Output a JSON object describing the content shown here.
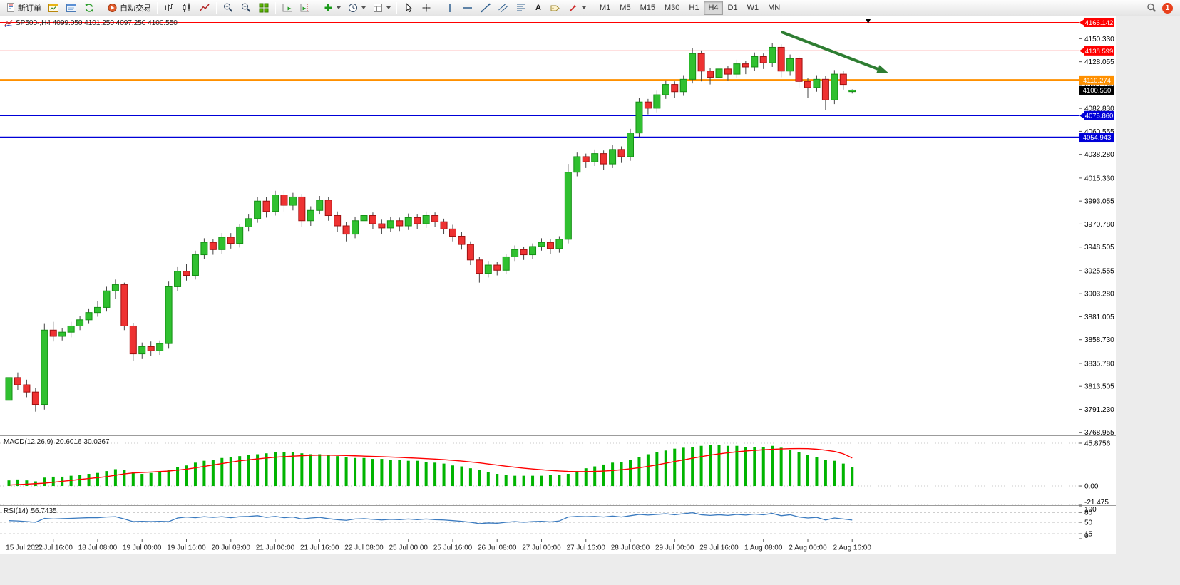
{
  "toolbar": {
    "new_order": "新订单",
    "autotrading": "自动交易",
    "text_tool": "A",
    "timeframes": [
      "M1",
      "M5",
      "M15",
      "M30",
      "H1",
      "H4",
      "D1",
      "W1",
      "MN"
    ],
    "active_timeframe": "H4",
    "notification_count": "1"
  },
  "chart_data": {
    "type": "candlestick",
    "symbol": "SP500-",
    "period": "H4",
    "title": "SP500-,H4 4099.050 4101.250 4097.250 4100.550",
    "ohlc": {
      "open": "4099.050",
      "high": "4101.250",
      "low": "4097.250",
      "close": "4100.550"
    },
    "price_range": [
      3766,
      4172
    ],
    "price_axis_ticks": [
      4150.33,
      4128.055,
      4105.78,
      4082.83,
      4060.555,
      4038.28,
      4015.33,
      3993.055,
      3970.78,
      3948.505,
      3925.555,
      3903.28,
      3881.005,
      3858.73,
      3835.78,
      3813.505,
      3791.23,
      3768.955
    ],
    "x_labels": [
      "15 Jul 2022",
      "15 Jul 16:00",
      "18 Jul 08:00",
      "19 Jul 00:00",
      "19 Jul 16:00",
      "20 Jul 08:00",
      "21 Jul 00:00",
      "21 Jul 16:00",
      "22 Jul 08:00",
      "25 Jul 00:00",
      "25 Jul 16:00",
      "26 Jul 08:00",
      "27 Jul 00:00",
      "27 Jul 16:00",
      "28 Jul 08:00",
      "29 Jul 00:00",
      "29 Jul 16:00",
      "1 Aug 08:00",
      "2 Aug 00:00",
      "2 Aug 16:00"
    ],
    "bars_per_label": 5,
    "colors": {
      "up": "#30C030",
      "up_border": "#149014",
      "down": "#EE3232",
      "down_border": "#A01010",
      "wick": "#444444"
    },
    "h_lines": [
      {
        "price": 4166.142,
        "color": "#FE0000",
        "label": "4166.142",
        "marker": true,
        "width": 1
      },
      {
        "price": 4138.599,
        "color": "#FE0000",
        "label": "4138.599",
        "marker": true,
        "width": 1
      },
      {
        "price": 4110.274,
        "color": "#FF9000",
        "label": "4110.274",
        "marker": false,
        "width": 2.5
      },
      {
        "price": 4100.55,
        "color": "#000000",
        "label": "4100.550",
        "marker": false,
        "width": 1
      },
      {
        "price": 4075.86,
        "color": "#0000D8",
        "label": "4075.860",
        "marker": true,
        "width": 1.5
      },
      {
        "price": 4054.943,
        "color": "#0000D8",
        "label": "4054.943",
        "marker": false,
        "width": 1.5
      }
    ],
    "annotations": [
      {
        "type": "arrow",
        "from_bar": 87,
        "from_price": 4157,
        "to_bar": 98.5,
        "to_price": 4119,
        "color": "#2E7D32",
        "width": 4
      }
    ],
    "shift_marker_bar": 96.8,
    "candles": [
      [
        3800,
        3826,
        3795,
        3822
      ],
      [
        3822,
        3827,
        3810,
        3815
      ],
      [
        3815,
        3820,
        3803,
        3808
      ],
      [
        3808,
        3812,
        3789,
        3796
      ],
      [
        3796,
        3874,
        3791,
        3868
      ],
      [
        3868,
        3876,
        3857,
        3862
      ],
      [
        3862,
        3870,
        3858,
        3866
      ],
      [
        3866,
        3876,
        3861,
        3872
      ],
      [
        3872,
        3882,
        3868,
        3878
      ],
      [
        3878,
        3889,
        3874,
        3885
      ],
      [
        3885,
        3896,
        3881,
        3890
      ],
      [
        3890,
        3910,
        3886,
        3906
      ],
      [
        3906,
        3917,
        3898,
        3912
      ],
      [
        3912,
        3914,
        3868,
        3872
      ],
      [
        3872,
        3875,
        3838,
        3845
      ],
      [
        3845,
        3856,
        3840,
        3852
      ],
      [
        3852,
        3857,
        3843,
        3848
      ],
      [
        3848,
        3858,
        3844,
        3855
      ],
      [
        3855,
        3915,
        3850,
        3910
      ],
      [
        3910,
        3929,
        3906,
        3925
      ],
      [
        3925,
        3932,
        3916,
        3921
      ],
      [
        3921,
        3945,
        3917,
        3941
      ],
      [
        3941,
        3957,
        3937,
        3953
      ],
      [
        3953,
        3956,
        3941,
        3946
      ],
      [
        3946,
        3962,
        3942,
        3958
      ],
      [
        3958,
        3962,
        3947,
        3952
      ],
      [
        3952,
        3971,
        3948,
        3968
      ],
      [
        3968,
        3980,
        3964,
        3976
      ],
      [
        3976,
        3997,
        3972,
        3993
      ],
      [
        3993,
        3997,
        3977,
        3983
      ],
      [
        3983,
        4003,
        3979,
        3999
      ],
      [
        3999,
        4003,
        3983,
        3989
      ],
      [
        3989,
        4001,
        3984,
        3997
      ],
      [
        3997,
        4000,
        3968,
        3974
      ],
      [
        3974,
        3988,
        3969,
        3984
      ],
      [
        3984,
        3998,
        3980,
        3994
      ],
      [
        3994,
        3997,
        3974,
        3979
      ],
      [
        3979,
        3983,
        3963,
        3969
      ],
      [
        3969,
        3973,
        3954,
        3961
      ],
      [
        3961,
        3978,
        3957,
        3974
      ],
      [
        3974,
        3983,
        3970,
        3979
      ],
      [
        3979,
        3982,
        3966,
        3971
      ],
      [
        3971,
        3975,
        3961,
        3967
      ],
      [
        3967,
        3978,
        3963,
        3974
      ],
      [
        3974,
        3977,
        3964,
        3969
      ],
      [
        3969,
        3981,
        3965,
        3977
      ],
      [
        3977,
        3980,
        3966,
        3971
      ],
      [
        3971,
        3983,
        3967,
        3979
      ],
      [
        3979,
        3982,
        3968,
        3973
      ],
      [
        3973,
        3976,
        3961,
        3966
      ],
      [
        3966,
        3970,
        3954,
        3959
      ],
      [
        3959,
        3963,
        3946,
        3951
      ],
      [
        3951,
        3954,
        3931,
        3936
      ],
      [
        3936,
        3939,
        3914,
        3923
      ],
      [
        3923,
        3935,
        3919,
        3931
      ],
      [
        3931,
        3934,
        3921,
        3926
      ],
      [
        3926,
        3942,
        3922,
        3939
      ],
      [
        3939,
        3950,
        3935,
        3946
      ],
      [
        3946,
        3949,
        3936,
        3941
      ],
      [
        3941,
        3952,
        3937,
        3949
      ],
      [
        3949,
        3957,
        3945,
        3953
      ],
      [
        3953,
        3956,
        3942,
        3947
      ],
      [
        3947,
        3959,
        3943,
        3956
      ],
      [
        3956,
        4029,
        3952,
        4021
      ],
      [
        4021,
        4040,
        4017,
        4036
      ],
      [
        4036,
        4039,
        4025,
        4031
      ],
      [
        4031,
        4043,
        4027,
        4039
      ],
      [
        4039,
        4042,
        4023,
        4029
      ],
      [
        4029,
        4047,
        4025,
        4043
      ],
      [
        4043,
        4046,
        4030,
        4036
      ],
      [
        4036,
        4063,
        4032,
        4059
      ],
      [
        4059,
        4093,
        4055,
        4089
      ],
      [
        4089,
        4092,
        4077,
        4083
      ],
      [
        4083,
        4100,
        4079,
        4096
      ],
      [
        4096,
        4110,
        4092,
        4106
      ],
      [
        4106,
        4109,
        4093,
        4099
      ],
      [
        4099,
        4115,
        4095,
        4111
      ],
      [
        4111,
        4141,
        4107,
        4136
      ],
      [
        4136,
        4139,
        4109,
        4119
      ],
      [
        4119,
        4122,
        4106,
        4113
      ],
      [
        4113,
        4125,
        4109,
        4121
      ],
      [
        4121,
        4124,
        4110,
        4116
      ],
      [
        4116,
        4130,
        4112,
        4126
      ],
      [
        4126,
        4129,
        4116,
        4123
      ],
      [
        4123,
        4137,
        4119,
        4133
      ],
      [
        4133,
        4136,
        4121,
        4127
      ],
      [
        4127,
        4146,
        4123,
        4142
      ],
      [
        4142,
        4145,
        4113,
        4119
      ],
      [
        4119,
        4135,
        4115,
        4131
      ],
      [
        4131,
        4134,
        4103,
        4109
      ],
      [
        4109,
        4112,
        4093,
        4103
      ],
      [
        4103,
        4115,
        4099,
        4111
      ],
      [
        4111,
        4114,
        4081,
        4091
      ],
      [
        4091,
        4120,
        4087,
        4116
      ],
      [
        4116,
        4119,
        4101,
        4106
      ],
      [
        4099.05,
        4101.25,
        4097.25,
        4100.55
      ]
    ],
    "indicators": {
      "macd": {
        "label": "MACD(12,26,9)",
        "values_text": "20.6016 30.0267",
        "axis_ticks": [
          {
            "v": 45.8756,
            "t": "45.8756"
          },
          {
            "v": 0,
            "t": "0.00"
          },
          {
            "v": -21.475,
            "t": "-21.475"
          }
        ],
        "range": [
          53.5,
          -20.6
        ],
        "hist_color": "#00B400",
        "signal_color": "#FF0000",
        "histogram": [
          6,
          7,
          6,
          5,
          9,
          10,
          10,
          11,
          12,
          13,
          14,
          16,
          18,
          17,
          15,
          13,
          14,
          15,
          17,
          20,
          22,
          25,
          27,
          28,
          30,
          31,
          32,
          33,
          34,
          35,
          36,
          36,
          36,
          35,
          34,
          34,
          33,
          32,
          31,
          30,
          30,
          29,
          29,
          28,
          28,
          27,
          27,
          26,
          25,
          24,
          22,
          21,
          19,
          17,
          15,
          13,
          12,
          11,
          11,
          11,
          11,
          12,
          12,
          13,
          16,
          19,
          21,
          23,
          25,
          26,
          28,
          31,
          34,
          36,
          38,
          40,
          41,
          42,
          43,
          44,
          44,
          43,
          43,
          42,
          42,
          42,
          43,
          41,
          39,
          36,
          33,
          31,
          28,
          27,
          24,
          20.6016
        ],
        "signal": [
          1,
          1.5,
          2,
          2.5,
          3,
          4,
          5,
          6,
          7,
          8,
          9,
          10,
          11.5,
          13,
          14,
          14.5,
          15,
          15.5,
          16,
          17,
          18,
          19.5,
          21,
          22.5,
          24,
          25.5,
          27,
          28,
          29,
          30,
          30.8,
          31.4,
          32,
          32.4,
          32.8,
          33,
          33,
          32.8,
          32.6,
          32.3,
          32,
          31.7,
          31.4,
          31,
          30.6,
          30.2,
          29.8,
          29.3,
          28.8,
          28.2,
          27.5,
          26.7,
          25.8,
          24.8,
          23.6,
          22.4,
          21.2,
          20.1,
          19.1,
          18.2,
          17.4,
          16.7,
          16.1,
          15.6,
          15.4,
          15.4,
          15.6,
          16,
          16.6,
          17.4,
          18.4,
          19.6,
          21,
          22.6,
          24.4,
          26.2,
          28,
          29.8,
          31.5,
          33,
          34.4,
          35.6,
          36.6,
          37.5,
          38.2,
          38.8,
          39.3,
          39.7,
          40,
          40.1,
          40,
          39.4,
          38.4,
          37,
          34.5,
          30.0267
        ]
      },
      "rsi": {
        "label": "RSI(14)",
        "value_text": "56.7435",
        "axis_ticks": [
          {
            "v": 100,
            "t": "100"
          },
          {
            "v": 80,
            "t": "80"
          },
          {
            "v": 50,
            "t": "50"
          },
          {
            "v": 15,
            "t": "15"
          },
          {
            "v": 0,
            "t": "0"
          }
        ],
        "levels": [
          80,
          50,
          15
        ],
        "range": [
          100,
          0
        ],
        "color": "#3A7ABF",
        "values": [
          55,
          54,
          52,
          50,
          62,
          60,
          61,
          62,
          63,
          64,
          64,
          66,
          67,
          60,
          52,
          53,
          52,
          53,
          52,
          63,
          66,
          64,
          67,
          65,
          67,
          64,
          67,
          68,
          70,
          65,
          68,
          64,
          66,
          60,
          63,
          65,
          61,
          58,
          56,
          60,
          61,
          59,
          57,
          59,
          58,
          60,
          58,
          60,
          58,
          57,
          55,
          53,
          50,
          46,
          48,
          47,
          50,
          52,
          50,
          52,
          53,
          51,
          54,
          66,
          68,
          67,
          68,
          66,
          69,
          66,
          70,
          74,
          72,
          74,
          76,
          73,
          76,
          79,
          73,
          71,
          73,
          71,
          74,
          72,
          75,
          73,
          77,
          70,
          73,
          66,
          63,
          65,
          57,
          63,
          60,
          56.7435
        ]
      }
    }
  }
}
